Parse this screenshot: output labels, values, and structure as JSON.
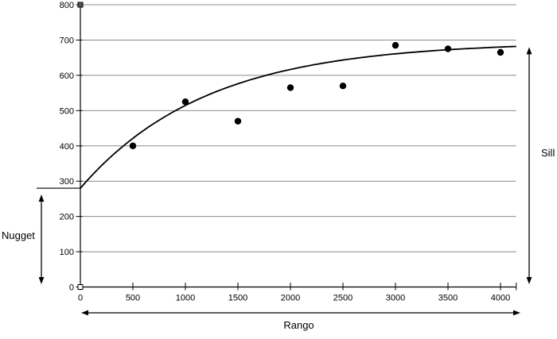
{
  "chart_data": {
    "type": "scatter",
    "title": "",
    "xlabel": "Rango",
    "ylabel": "",
    "xlim": [
      0,
      4150
    ],
    "ylim": [
      0,
      800
    ],
    "x_ticks": [
      0,
      500,
      1000,
      1500,
      2000,
      2500,
      3000,
      3500,
      4000
    ],
    "y_ticks": [
      0,
      100,
      200,
      300,
      400,
      500,
      600,
      700,
      800
    ],
    "grid": true,
    "points": [
      {
        "x": 500,
        "y": 400
      },
      {
        "x": 1000,
        "y": 525
      },
      {
        "x": 1500,
        "y": 470
      },
      {
        "x": 2000,
        "y": 565
      },
      {
        "x": 2500,
        "y": 570
      },
      {
        "x": 3000,
        "y": 685
      },
      {
        "x": 3500,
        "y": 675
      },
      {
        "x": 4000,
        "y": 665
      }
    ],
    "fitted_curve": {
      "model": "exponential",
      "nugget": 280,
      "sill": 695,
      "scale": 1200,
      "x_start": 0,
      "x_end": 4150
    },
    "annotations": {
      "nugget": {
        "label": "Nugget",
        "value": 280
      },
      "sill": {
        "label": "Sill",
        "value": 680
      },
      "range": {
        "label": "Rango"
      }
    },
    "colors": {
      "curve": "#000000",
      "points": "#000000",
      "gridline": "#8c8c8c",
      "axis": "#000000",
      "text": "#000000",
      "background": "#ffffff",
      "handle_top": "#555555",
      "handle_origin": "#ffffff"
    }
  }
}
